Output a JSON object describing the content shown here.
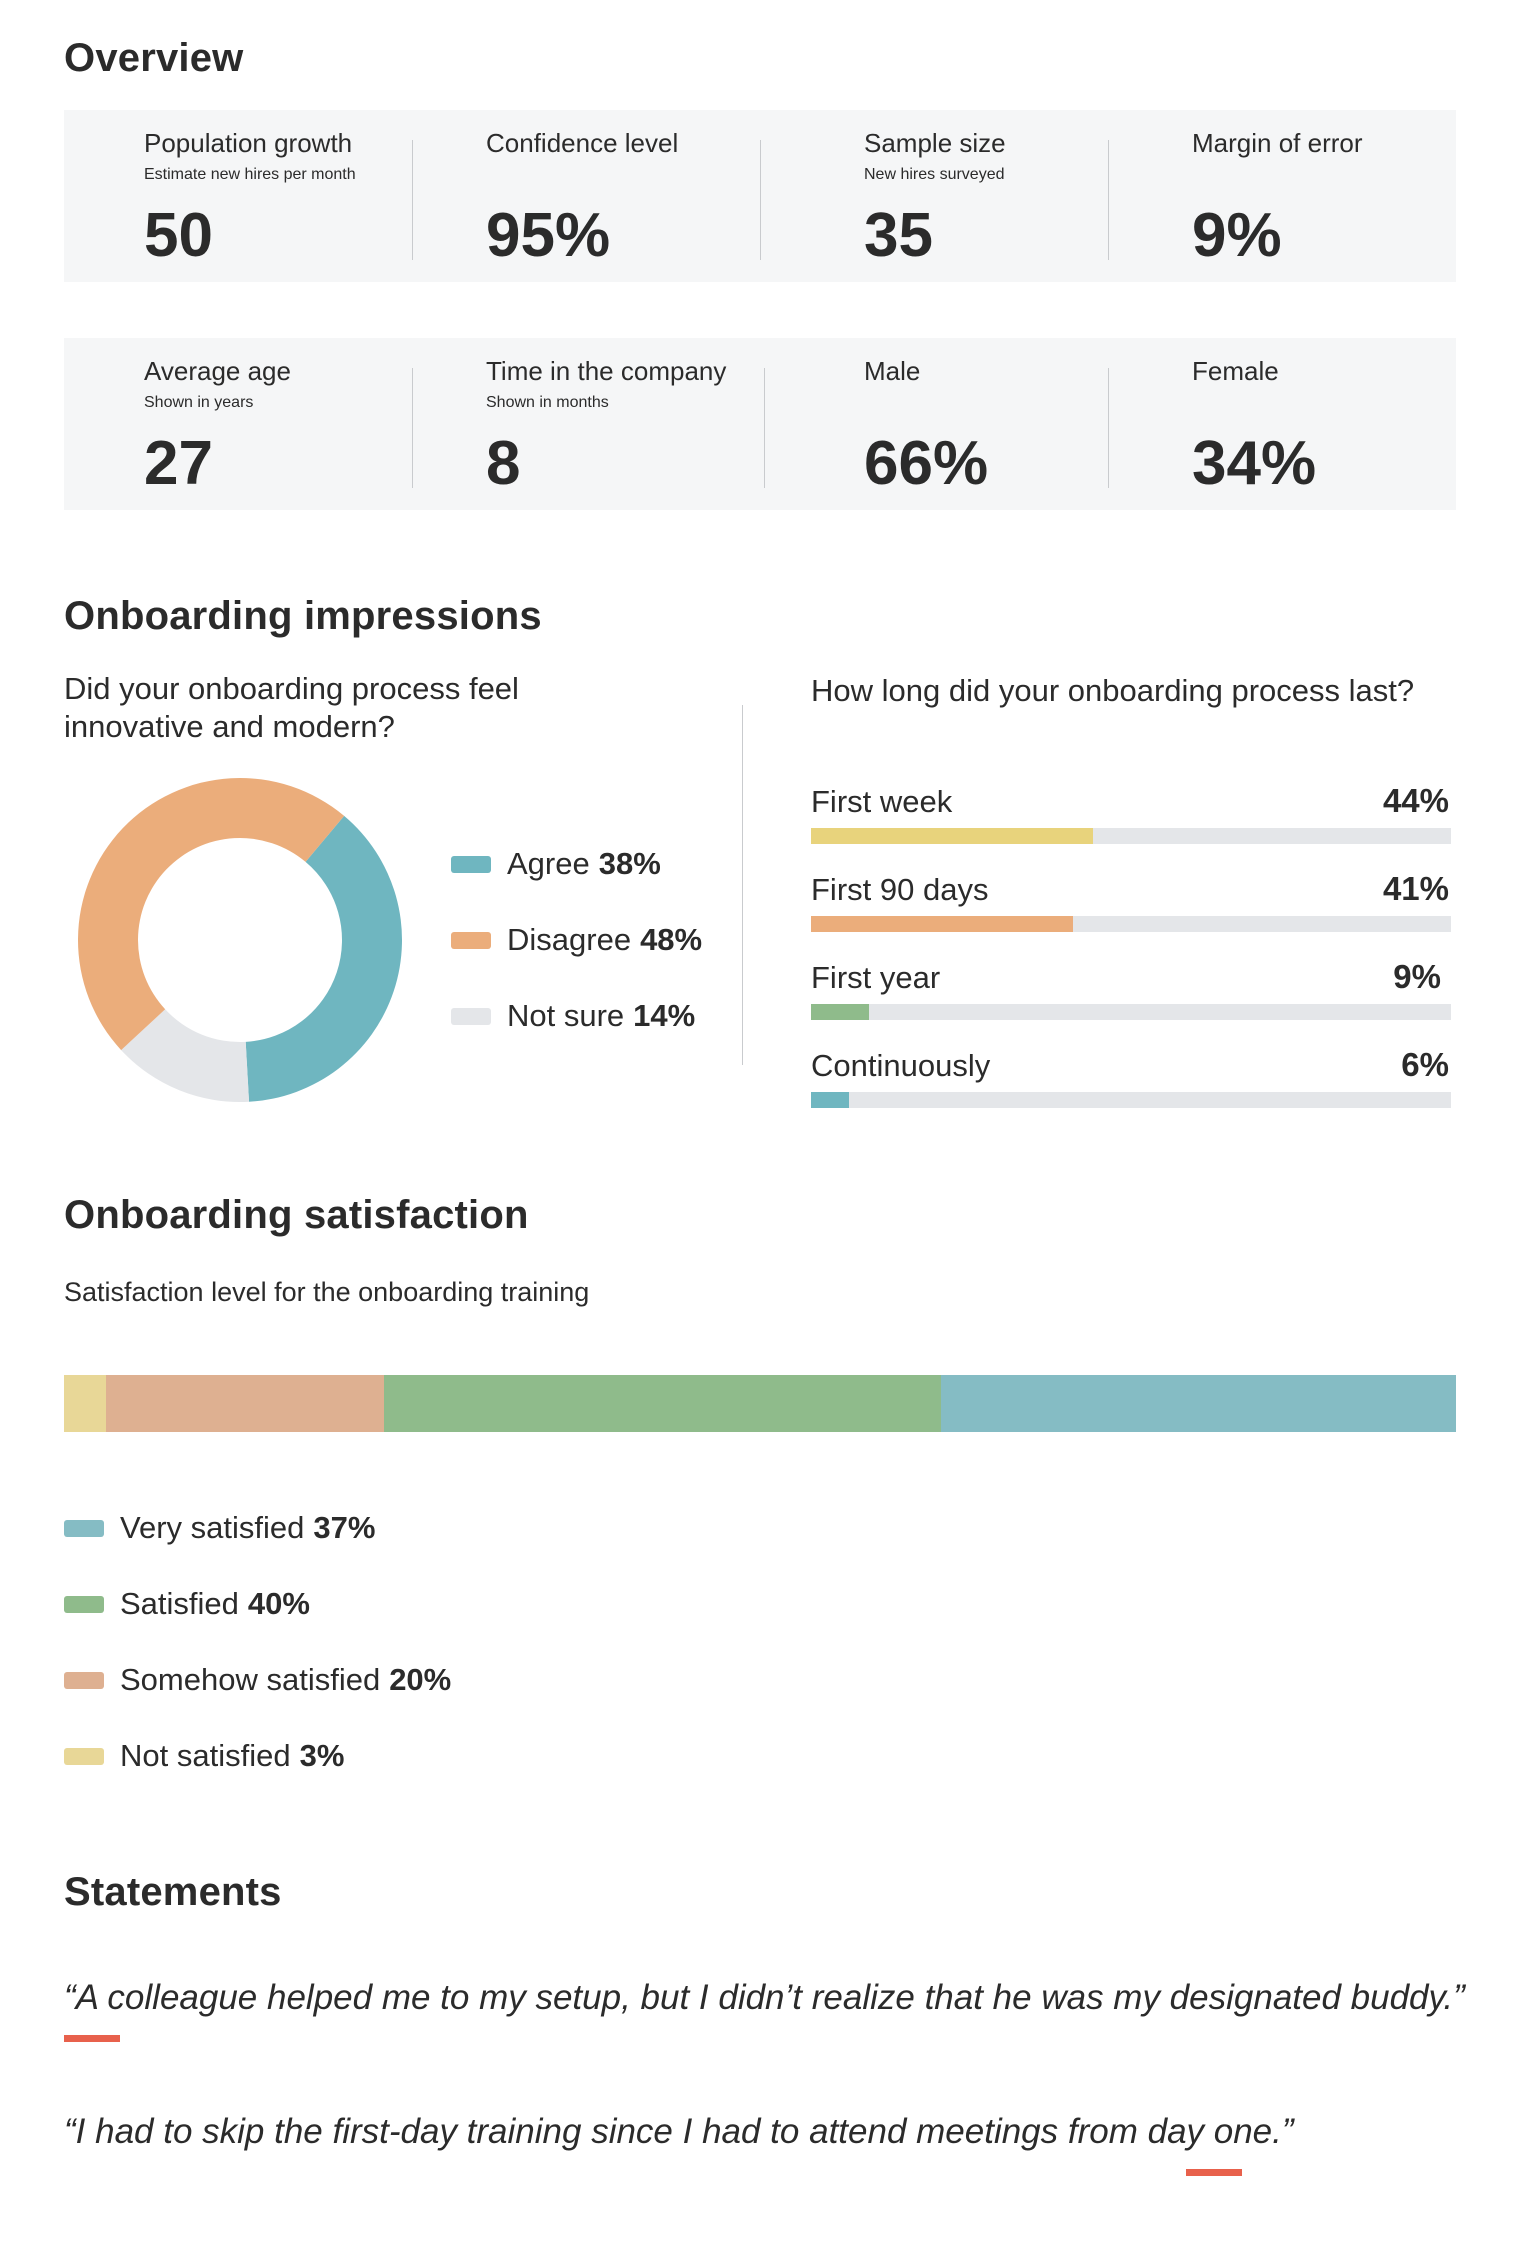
{
  "overview": {
    "title": "Overview",
    "row1": [
      {
        "label": "Population growth",
        "sub": "Estimate new hires per month",
        "value": "50"
      },
      {
        "label": "Confidence level",
        "sub": "",
        "value": "95%"
      },
      {
        "label": "Sample size",
        "sub": "New hires surveyed",
        "value": "35"
      },
      {
        "label": "Margin of error",
        "sub": "",
        "value": "9%"
      }
    ],
    "row2": [
      {
        "label": "Average age",
        "sub": "Shown in years",
        "value": "27"
      },
      {
        "label": "Time in the company",
        "sub": "Shown in months",
        "value": "8"
      },
      {
        "label": "Male",
        "sub": "",
        "value": "66%"
      },
      {
        "label": "Female",
        "sub": "",
        "value": "34%"
      }
    ]
  },
  "impressions": {
    "title": "Onboarding impressions",
    "q1": "Did your onboarding process feel innovative and modern?",
    "q2": "How long did your onboarding process last?"
  },
  "satisfaction": {
    "title": "Onboarding satisfaction",
    "caption": "Satisfaction level for the onboarding training"
  },
  "statements": {
    "title": "Statements",
    "quotes": [
      "“A colleague helped me to my setup, but I didn’t realize that he was my designated buddy.”",
      "“I had to skip the first-day training since I had to attend meetings from day one.”"
    ]
  },
  "colors": {
    "teal": "#6fb6c0",
    "orange": "#ebad7b",
    "light_gray": "#e4e6e9",
    "yellow": "#e8d37c",
    "green": "#8fbb8b",
    "tan": "#deb091",
    "sat_teal": "#85bcc4",
    "sat_yellow": "#e8d797",
    "accent_red": "#e8614c"
  },
  "chart_data": [
    {
      "type": "pie",
      "title": "Did your onboarding process feel innovative and modern?",
      "variant": "donut",
      "slices": [
        {
          "label": "Agree",
          "value": 38,
          "display": "38%",
          "color": "#6fb6c0"
        },
        {
          "label": "Disagree",
          "value": 48,
          "display": "48%",
          "color": "#ebad7b"
        },
        {
          "label": "Not sure",
          "value": 14,
          "display": "14%",
          "color": "#e4e6e9"
        }
      ],
      "legend": "right"
    },
    {
      "type": "bar",
      "orientation": "horizontal",
      "title": "How long did your onboarding process last?",
      "categories": [
        "First week",
        "First 90 days",
        "First year",
        "Continuously"
      ],
      "values": [
        44,
        41,
        9,
        6
      ],
      "display": [
        "44%",
        "41%",
        "9%",
        "6%"
      ],
      "colors": [
        "#e8d37c",
        "#ebad7b",
        "#8fbb8b",
        "#6fb6c0"
      ],
      "xlim": [
        0,
        100
      ]
    },
    {
      "type": "bar",
      "orientation": "stacked-horizontal",
      "title": "Satisfaction level for the onboarding training",
      "segments": [
        {
          "label": "Not satisfied",
          "value": 3,
          "display": "3%",
          "color": "#e8d797"
        },
        {
          "label": "Somehow satisfied",
          "value": 20,
          "display": "20%",
          "color": "#deb091"
        },
        {
          "label": "Satisfied",
          "value": 40,
          "display": "40%",
          "color": "#8fbb8b"
        },
        {
          "label": "Very satisfied",
          "value": 37,
          "display": "37%",
          "color": "#85bcc4"
        }
      ],
      "legend_order": [
        "Very satisfied",
        "Satisfied",
        "Somehow satisfied",
        "Not satisfied"
      ],
      "legend": "bottom"
    }
  ]
}
